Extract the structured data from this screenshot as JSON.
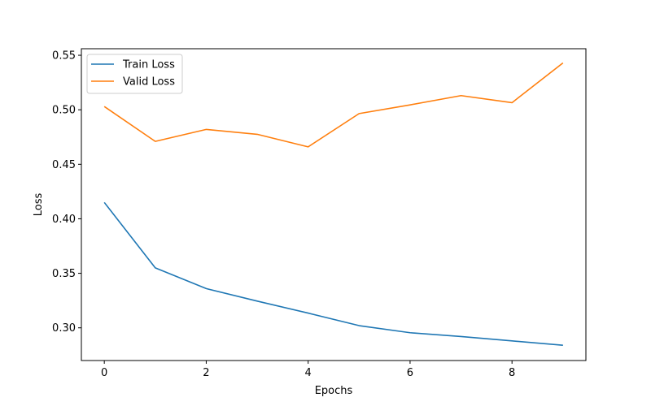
{
  "chart_data": {
    "type": "line",
    "title": "",
    "xlabel": "Epochs",
    "ylabel": "Loss",
    "xlim": [
      -0.45,
      9.45
    ],
    "ylim": [
      0.27,
      0.556
    ],
    "xticks": [
      0,
      2,
      4,
      6,
      8
    ],
    "yticks": [
      0.3,
      0.35,
      0.4,
      0.45,
      0.5,
      0.55
    ],
    "xtick_labels": [
      "0",
      "2",
      "4",
      "6",
      "8"
    ],
    "ytick_labels": [
      "0.30",
      "0.35",
      "0.40",
      "0.45",
      "0.50",
      "0.55"
    ],
    "grid": false,
    "legend_position": "upper-left",
    "x": [
      0,
      1,
      2,
      3,
      4,
      5,
      6,
      7,
      8,
      9
    ],
    "series": [
      {
        "name": "Train Loss",
        "color": "#1f77b4",
        "values": [
          0.415,
          0.355,
          0.336,
          0.3245,
          0.3135,
          0.302,
          0.2955,
          0.292,
          0.288,
          0.284
        ]
      },
      {
        "name": "Valid Loss",
        "color": "#ff7f0e",
        "values": [
          0.503,
          0.471,
          0.482,
          0.4775,
          0.466,
          0.4965,
          0.5045,
          0.513,
          0.5065,
          0.543
        ]
      }
    ]
  }
}
